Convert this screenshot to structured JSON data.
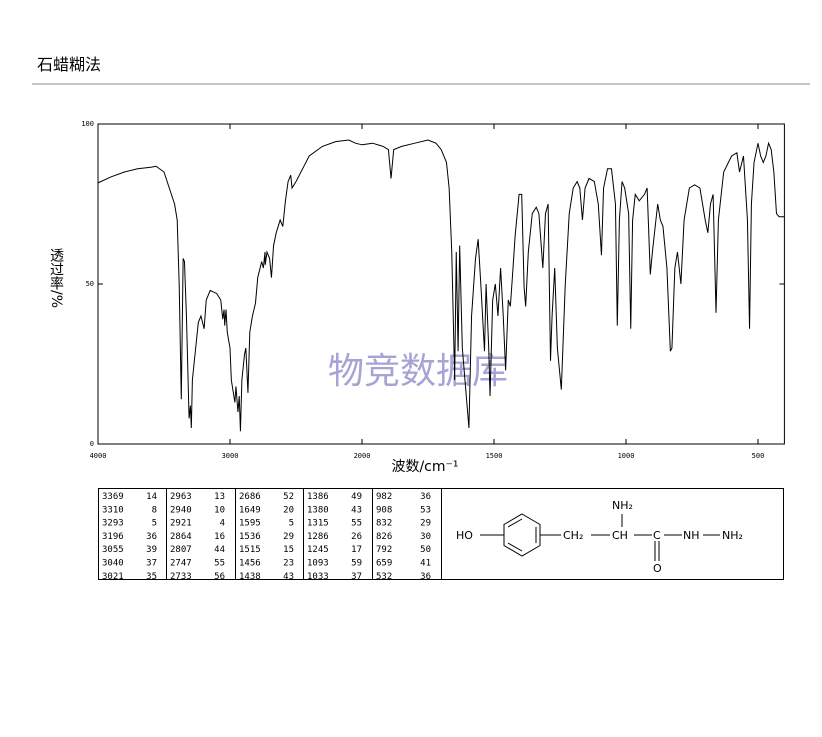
{
  "header": {
    "title": "石蜡糊法"
  },
  "chart_data": {
    "type": "line",
    "color": "#000000",
    "xlabel": "波数/cm⁻¹",
    "ylabel": "透过率/%",
    "watermark": "物竞数据库",
    "xlim": [
      4000,
      400
    ],
    "xticks": [
      4000,
      3000,
      2000,
      1500,
      1000,
      500
    ],
    "ylim": [
      0,
      100
    ],
    "yticks": [
      0,
      50,
      100
    ],
    "x": [
      4000,
      3900,
      3800,
      3700,
      3600,
      3560,
      3500,
      3460,
      3420,
      3400,
      3385,
      3369,
      3355,
      3345,
      3330,
      3310,
      3300,
      3293,
      3285,
      3260,
      3240,
      3220,
      3196,
      3180,
      3150,
      3100,
      3070,
      3055,
      3045,
      3040,
      3030,
      3021,
      3000,
      2990,
      2963,
      2955,
      2940,
      2930,
      2921,
      2910,
      2890,
      2880,
      2864,
      2850,
      2830,
      2807,
      2790,
      2760,
      2747,
      2735,
      2733,
      2720,
      2700,
      2686,
      2670,
      2650,
      2620,
      2600,
      2580,
      2560,
      2540,
      2530,
      2500,
      2450,
      2400,
      2300,
      2200,
      2100,
      2050,
      2000,
      1960,
      1920,
      1900,
      1890,
      1880,
      1850,
      1800,
      1750,
      1720,
      1700,
      1680,
      1670,
      1660,
      1649,
      1643,
      1636,
      1630,
      1620,
      1600,
      1595,
      1585,
      1570,
      1560,
      1550,
      1540,
      1536,
      1530,
      1520,
      1515,
      1505,
      1495,
      1485,
      1475,
      1465,
      1456,
      1446,
      1438,
      1428,
      1420,
      1405,
      1395,
      1386,
      1380,
      1370,
      1355,
      1340,
      1330,
      1315,
      1305,
      1295,
      1286,
      1280,
      1270,
      1260,
      1245,
      1230,
      1215,
      1200,
      1185,
      1175,
      1165,
      1155,
      1140,
      1120,
      1105,
      1093,
      1085,
      1070,
      1055,
      1040,
      1033,
      1025,
      1015,
      1005,
      990,
      982,
      975,
      965,
      950,
      930,
      920,
      908,
      900,
      880,
      870,
      860,
      845,
      832,
      826,
      815,
      805,
      792,
      780,
      760,
      740,
      720,
      700,
      690,
      680,
      670,
      659,
      650,
      630,
      600,
      580,
      570,
      555,
      540,
      532,
      525,
      515,
      500,
      490,
      480,
      470,
      460,
      450,
      440,
      430,
      420,
      400
    ],
    "values": [
      81.6,
      83.5,
      85,
      86,
      86.5,
      86.8,
      85,
      80,
      75,
      70,
      50,
      14,
      58,
      57,
      40,
      8,
      12,
      5,
      20,
      30,
      38,
      40,
      36,
      45,
      48,
      47,
      45,
      39,
      42,
      37,
      42,
      35,
      30,
      20,
      13,
      18,
      10,
      15,
      4,
      20,
      28,
      30,
      16,
      35,
      40,
      44,
      52,
      57,
      55,
      60,
      56,
      60,
      58,
      52,
      62,
      66,
      70,
      68,
      76,
      82,
      84,
      80,
      82,
      86,
      90,
      93,
      94.5,
      95,
      94,
      93.5,
      94,
      93,
      92,
      83,
      92,
      93,
      94,
      95,
      94,
      92,
      88,
      80,
      60,
      20,
      60,
      29,
      62,
      30,
      10,
      5,
      40,
      58,
      64,
      50,
      35,
      29,
      50,
      30,
      15,
      45,
      50,
      40,
      55,
      40,
      23,
      45,
      43,
      55,
      65,
      78,
      78,
      49,
      43,
      60,
      72,
      74,
      72,
      55,
      72,
      75,
      26,
      40,
      55,
      30,
      17,
      50,
      72,
      80,
      82,
      80,
      70,
      80,
      83,
      82,
      75,
      59,
      80,
      86,
      86,
      75,
      37,
      70,
      82,
      80,
      72,
      36,
      70,
      78,
      76,
      78,
      80,
      53,
      60,
      75,
      70,
      68,
      55,
      29,
      30,
      55,
      60,
      50,
      70,
      80,
      81,
      80,
      70,
      66,
      75,
      78,
      41,
      70,
      85,
      90,
      91,
      85,
      90,
      70,
      36,
      75,
      88,
      94,
      90,
      88,
      90,
      94,
      92,
      85,
      72,
      71,
      71
    ]
  },
  "table": {
    "peaks": [
      [
        [
          3369,
          14
        ],
        [
          3310,
          8
        ],
        [
          3293,
          5
        ],
        [
          3196,
          36
        ],
        [
          3055,
          39
        ],
        [
          3040,
          37
        ],
        [
          3021,
          35
        ]
      ],
      [
        [
          2963,
          13
        ],
        [
          2940,
          10
        ],
        [
          2921,
          4
        ],
        [
          2864,
          16
        ],
        [
          2807,
          44
        ],
        [
          2747,
          55
        ],
        [
          2733,
          56
        ]
      ],
      [
        [
          2686,
          52
        ],
        [
          1649,
          20
        ],
        [
          1595,
          5
        ],
        [
          1536,
          29
        ],
        [
          1515,
          15
        ],
        [
          1456,
          23
        ],
        [
          1438,
          43
        ]
      ],
      [
        [
          1386,
          49
        ],
        [
          1380,
          43
        ],
        [
          1315,
          55
        ],
        [
          1286,
          26
        ],
        [
          1245,
          17
        ],
        [
          1093,
          59
        ],
        [
          1033,
          37
        ]
      ],
      [
        [
          982,
          36
        ],
        [
          908,
          53
        ],
        [
          832,
          29
        ],
        [
          826,
          30
        ],
        [
          792,
          50
        ],
        [
          659,
          41
        ],
        [
          532,
          36
        ]
      ]
    ]
  },
  "structure": {
    "labels": [
      "HO",
      "NH₂",
      "CH₂",
      "CH",
      "C",
      "NH",
      "NH₂",
      "O"
    ]
  }
}
